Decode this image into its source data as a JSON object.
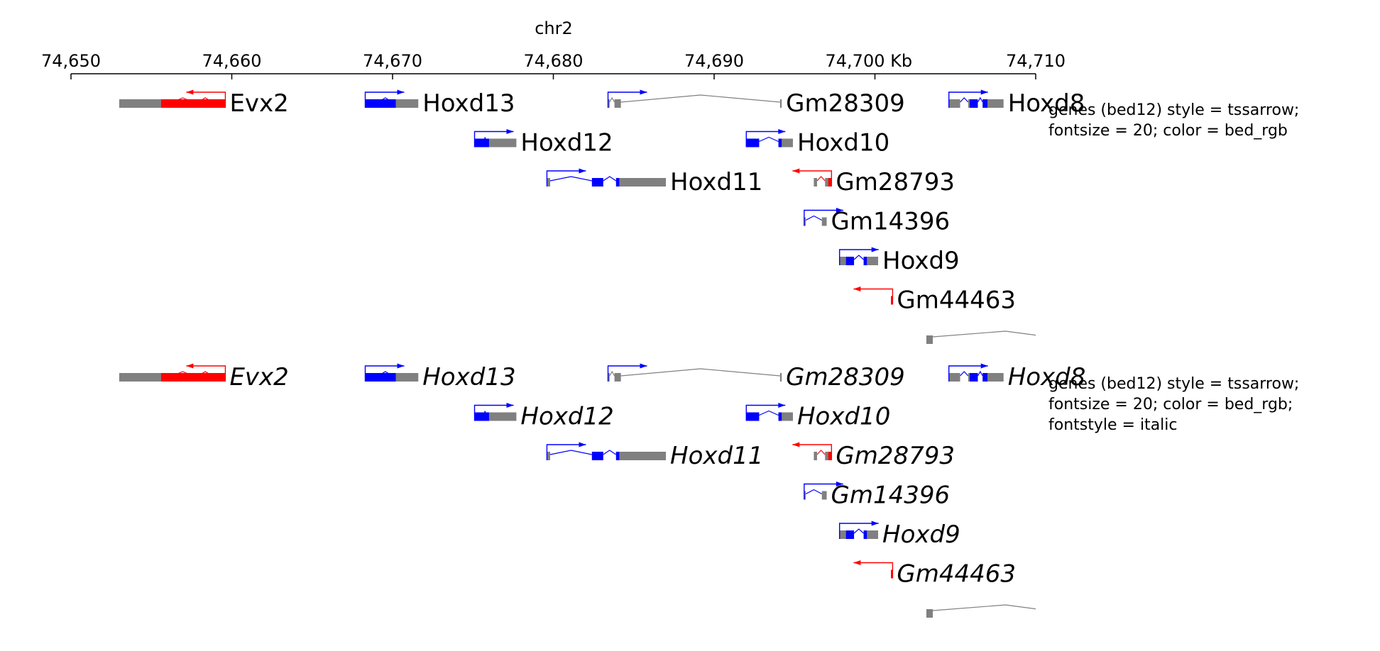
{
  "axis": {
    "chrom": "chr2",
    "min": 74650,
    "max": 74710,
    "ticks": [
      {
        "value": 74650,
        "label": "74,650"
      },
      {
        "value": 74660,
        "label": "74,660"
      },
      {
        "value": 74670,
        "label": "74,670"
      },
      {
        "value": 74680,
        "label": "74,680"
      },
      {
        "value": 74690,
        "label": "74,690"
      },
      {
        "value": 74700,
        "label": "74,700 Kb"
      },
      {
        "value": 74710,
        "label": "74,710"
      }
    ]
  },
  "tracks": [
    {
      "id": "plain",
      "italic": false,
      "description": [
        "genes (bed12) style = tssarrow;",
        "fontsize = 20; color = bed_rgb"
      ]
    },
    {
      "id": "italic",
      "italic": true,
      "description": [
        "genes (bed12) style = tssarrow;",
        "fontsize = 20; color = bed_rgb;",
        "fontstyle = italic"
      ]
    }
  ],
  "colors": {
    "plus_strand": "#0000ff",
    "minus_strand": "#ff0000",
    "noncoding": "#808080",
    "axis": "#000000"
  },
  "genes": [
    {
      "name": "Evx2",
      "row": 0,
      "strand": "-",
      "color": "#ff0000",
      "start": 74653.0,
      "end": 74659.6,
      "exons": [
        [
          74653.0,
          74655.6
        ],
        [
          74655.6,
          74656.3
        ],
        [
          74657.6,
          74657.9
        ],
        [
          74658.8,
          74659.6
        ]
      ],
      "coding": [
        [
          74655.6,
          74659.6
        ]
      ]
    },
    {
      "name": "Hoxd13",
      "row": 0,
      "strand": "+",
      "color": "#0000ff",
      "start": 74668.3,
      "end": 74671.6,
      "exons": [
        [
          74668.3,
          74669.1
        ],
        [
          74670.0,
          74671.6
        ]
      ],
      "coding": [
        [
          74668.3,
          74670.2
        ]
      ]
    },
    {
      "name": "Gm28309",
      "row": 0,
      "strand": "+",
      "color": "#808080",
      "start": 74683.4,
      "end": 74694.2,
      "exons": [
        [
          74683.4,
          74683.5
        ],
        [
          74683.8,
          74684.2
        ],
        [
          74694.1,
          74694.2
        ]
      ],
      "coding": []
    },
    {
      "name": "Hoxd8",
      "row": 0,
      "strand": "+",
      "color": "#0000ff",
      "start": 74704.6,
      "end": 74708.0,
      "exons": [
        [
          74704.6,
          74705.3
        ],
        [
          74705.8,
          74706.4
        ],
        [
          74706.7,
          74708.0
        ]
      ],
      "coding": [
        [
          74705.9,
          74706.4
        ],
        [
          74706.7,
          74707.0
        ]
      ]
    },
    {
      "name": "Hoxd12",
      "row": 1,
      "strand": "+",
      "color": "#0000ff",
      "start": 74675.1,
      "end": 74677.7,
      "exons": [
        [
          74675.1,
          74675.7
        ],
        [
          74675.8,
          74677.7
        ]
      ],
      "coding": [
        [
          74675.1,
          74676.0
        ]
      ]
    },
    {
      "name": "Hoxd10",
      "row": 1,
      "strand": "+",
      "color": "#0000ff",
      "start": 74692.0,
      "end": 74694.9,
      "exons": [
        [
          74692.0,
          74692.8
        ],
        [
          74694.0,
          74694.9
        ]
      ],
      "coding": [
        [
          74692.0,
          74692.8
        ],
        [
          74694.0,
          74694.2
        ]
      ]
    },
    {
      "name": "Hoxd11",
      "row": 2,
      "strand": "+",
      "color": "#0000ff",
      "start": 74679.6,
      "end": 74687.0,
      "exons": [
        [
          74679.6,
          74679.8
        ],
        [
          74682.4,
          74683.1
        ],
        [
          74683.9,
          74687.0
        ]
      ],
      "coding": [
        [
          74682.4,
          74683.1
        ],
        [
          74683.9,
          74684.1
        ]
      ]
    },
    {
      "name": "Gm28793",
      "row": 2,
      "strand": "-",
      "color": "#ff0000",
      "start": 74695.8,
      "end": 74697.3,
      "exons": [
        [
          74696.2,
          74696.4
        ],
        [
          74696.9,
          74697.3
        ]
      ],
      "coding": [
        [
          74697.1,
          74697.3
        ]
      ]
    },
    {
      "name": "Gm14396",
      "row": 3,
      "strand": "+",
      "color": "#0000ff",
      "start": 74695.6,
      "end": 74697.0,
      "exons": [
        [
          74695.6,
          74695.7
        ],
        [
          74696.7,
          74697.0
        ]
      ],
      "coding": []
    },
    {
      "name": "Hoxd9",
      "row": 4,
      "strand": "+",
      "color": "#0000ff",
      "start": 74697.8,
      "end": 74700.2,
      "exons": [
        [
          74697.8,
          74698.7
        ],
        [
          74699.3,
          74700.2
        ]
      ],
      "coding": [
        [
          74698.2,
          74698.7
        ],
        [
          74699.3,
          74699.5
        ]
      ]
    },
    {
      "name": "Gm44463",
      "row": 5,
      "strand": "-",
      "color": "#ff0000",
      "start": 74698.7,
      "end": 74701.1,
      "exons": [
        [
          74701.0,
          74701.1
        ]
      ],
      "coding": [
        [
          74701.0,
          74701.1
        ]
      ]
    },
    {
      "name": "",
      "row": 6,
      "strand": "+",
      "color": "#808080",
      "start": 74703.2,
      "end": 74710.0,
      "exons": [
        [
          74703.2,
          74703.6
        ]
      ],
      "coding": [],
      "continues_right": true
    }
  ]
}
